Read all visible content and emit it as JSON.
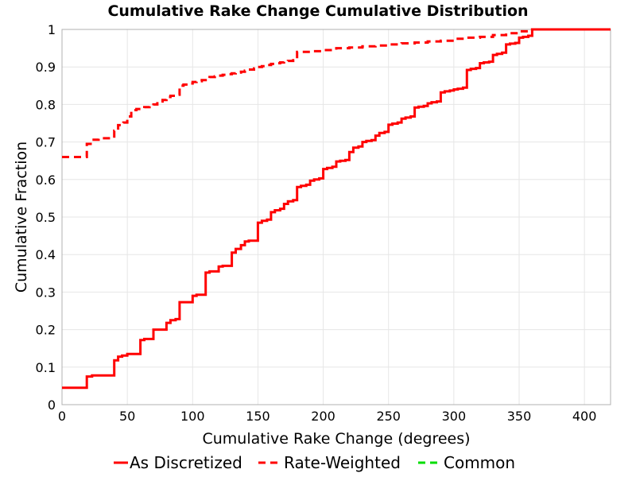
{
  "chart_data": {
    "type": "line",
    "title": "Cumulative Rake Change Cumulative Distribution",
    "xlabel": "Cumulative Rake Change (degrees)",
    "ylabel": "Cumulative Fraction",
    "xlim": [
      0,
      420
    ],
    "ylim": [
      0,
      1
    ],
    "xticks": [
      "0",
      "50",
      "100",
      "150",
      "200",
      "250",
      "300",
      "350",
      "400"
    ],
    "yticks": [
      "0",
      "0.1",
      "0.2",
      "0.3",
      "0.4",
      "0.5",
      "0.6",
      "0.7",
      "0.8",
      "0.9",
      "1"
    ],
    "grid": true,
    "legend_position": "bottom",
    "series": [
      {
        "name": "As Discretized",
        "color": "#ff0000",
        "dash": "solid",
        "step": true,
        "x": [
          0,
          19,
          23,
          40,
          43,
          46,
          50,
          60,
          63,
          70,
          80,
          83,
          87,
          90,
          100,
          103,
          110,
          113,
          120,
          123,
          130,
          133,
          137,
          140,
          143,
          150,
          153,
          157,
          160,
          163,
          167,
          170,
          173,
          177,
          180,
          183,
          187,
          190,
          193,
          197,
          200,
          203,
          207,
          210,
          213,
          217,
          220,
          223,
          227,
          230,
          233,
          237,
          240,
          243,
          247,
          250,
          253,
          257,
          260,
          263,
          267,
          270,
          273,
          277,
          280,
          283,
          287,
          290,
          293,
          297,
          300,
          303,
          307,
          310,
          313,
          317,
          320,
          323,
          327,
          330,
          333,
          337,
          340,
          343,
          347,
          350,
          353,
          357,
          360,
          420
        ],
        "values": [
          0.045,
          0.075,
          0.078,
          0.118,
          0.128,
          0.131,
          0.135,
          0.172,
          0.175,
          0.2,
          0.218,
          0.225,
          0.228,
          0.273,
          0.29,
          0.293,
          0.352,
          0.355,
          0.368,
          0.37,
          0.405,
          0.415,
          0.425,
          0.435,
          0.437,
          0.485,
          0.49,
          0.493,
          0.513,
          0.518,
          0.522,
          0.535,
          0.542,
          0.545,
          0.58,
          0.583,
          0.586,
          0.597,
          0.6,
          0.603,
          0.628,
          0.631,
          0.634,
          0.648,
          0.65,
          0.652,
          0.673,
          0.685,
          0.688,
          0.7,
          0.703,
          0.705,
          0.717,
          0.724,
          0.727,
          0.746,
          0.749,
          0.752,
          0.762,
          0.765,
          0.768,
          0.792,
          0.794,
          0.796,
          0.803,
          0.806,
          0.808,
          0.832,
          0.835,
          0.837,
          0.84,
          0.842,
          0.845,
          0.892,
          0.895,
          0.897,
          0.91,
          0.912,
          0.914,
          0.932,
          0.935,
          0.938,
          0.96,
          0.962,
          0.964,
          0.978,
          0.98,
          0.983,
          1.0,
          1.0
        ]
      },
      {
        "name": "Rate-Weighted",
        "color": "#ff0000",
        "dash": "dashed",
        "step": true,
        "x": [
          0,
          19,
          23,
          28,
          40,
          43,
          47,
          50,
          53,
          57,
          60,
          63,
          67,
          70,
          73,
          77,
          80,
          83,
          87,
          90,
          93,
          97,
          100,
          103,
          107,
          110,
          113,
          117,
          120,
          123,
          127,
          130,
          133,
          137,
          140,
          143,
          147,
          150,
          153,
          157,
          160,
          163,
          167,
          170,
          173,
          177,
          180,
          190,
          200,
          210,
          220,
          230,
          240,
          250,
          260,
          270,
          280,
          290,
          300,
          310,
          320,
          330,
          340,
          350,
          360,
          420
        ],
        "values": [
          0.66,
          0.695,
          0.706,
          0.71,
          0.73,
          0.745,
          0.752,
          0.768,
          0.785,
          0.788,
          0.79,
          0.793,
          0.796,
          0.8,
          0.808,
          0.812,
          0.82,
          0.823,
          0.826,
          0.85,
          0.853,
          0.856,
          0.86,
          0.862,
          0.865,
          0.87,
          0.873,
          0.875,
          0.877,
          0.879,
          0.881,
          0.883,
          0.885,
          0.887,
          0.89,
          0.893,
          0.896,
          0.9,
          0.902,
          0.905,
          0.908,
          0.91,
          0.912,
          0.914,
          0.916,
          0.918,
          0.94,
          0.942,
          0.945,
          0.95,
          0.952,
          0.955,
          0.957,
          0.96,
          0.963,
          0.965,
          0.968,
          0.97,
          0.975,
          0.978,
          0.98,
          0.985,
          0.99,
          0.995,
          1.0,
          1.0
        ]
      },
      {
        "name": "Common",
        "color": "#00dd00",
        "dash": "dashed",
        "step": true,
        "x": [],
        "values": []
      }
    ]
  }
}
